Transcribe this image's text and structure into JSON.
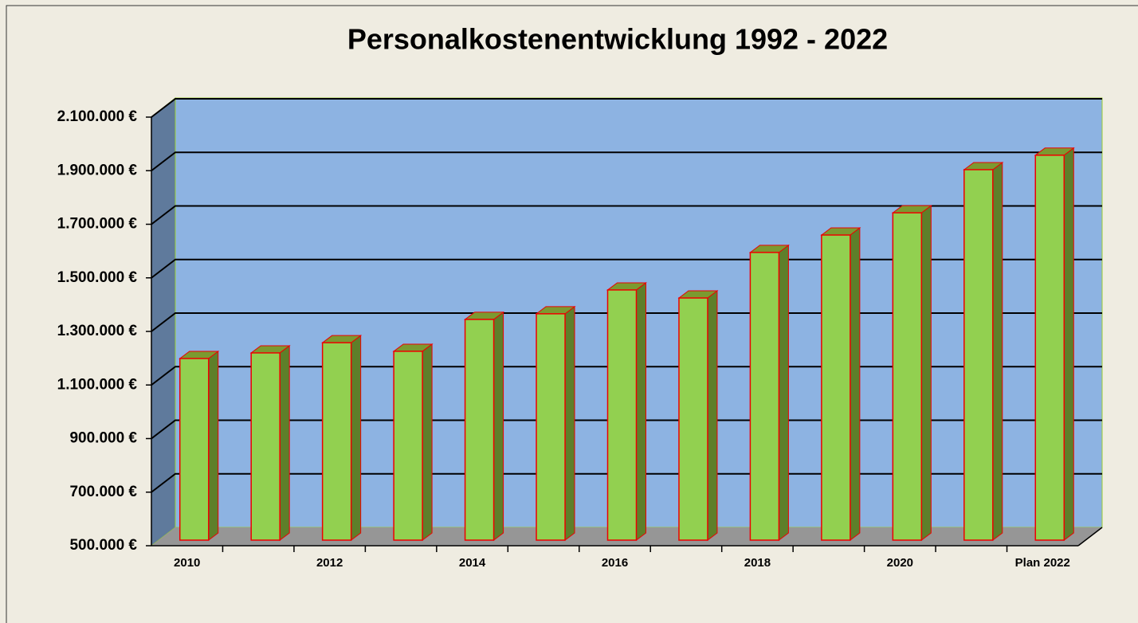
{
  "chart_data": {
    "type": "bar3d",
    "title": "Personalkostenentwicklung 1992 - 2022",
    "categories": [
      "2010",
      null,
      "2012",
      null,
      "2014",
      null,
      "2016",
      null,
      "2018",
      null,
      "2020",
      null,
      "Plan 2022"
    ],
    "values": [
      1178000,
      1199000,
      1237000,
      1205000,
      1324000,
      1345000,
      1434000,
      1404000,
      1574000,
      1639000,
      1722000,
      1883000,
      1937000
    ],
    "color": "#92d050",
    "ylim": [
      500000,
      2100000
    ],
    "yticks": [
      {
        "value": 500000,
        "label": "500.000 €"
      },
      {
        "value": 700000,
        "label": "700.000 €"
      },
      {
        "value": 900000,
        "label": "900.000 €"
      },
      {
        "value": 1100000,
        "label": "1.100.000 €"
      },
      {
        "value": 1300000,
        "label": "1.300.000 €"
      },
      {
        "value": 1500000,
        "label": "1.500.000 €"
      },
      {
        "value": 1700000,
        "label": "1.700.000 €"
      },
      {
        "value": 1900000,
        "label": "1.900.000 €"
      },
      {
        "value": 2100000,
        "label": "2.100.000 €"
      }
    ],
    "grid": true
  }
}
